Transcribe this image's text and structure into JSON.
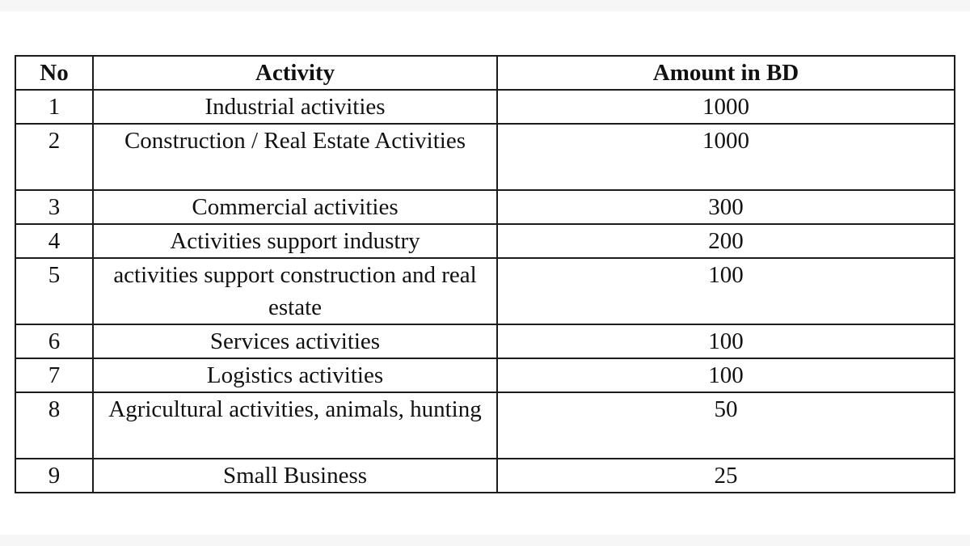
{
  "table": {
    "headers": {
      "no": "No",
      "activity": "Activity",
      "amount": "Amount in BD"
    },
    "rows": [
      {
        "no": "1",
        "activity": "Industrial activities",
        "amount": "1000"
      },
      {
        "no": "2",
        "activity": "Construction / Real Estate Activities",
        "amount": "1000"
      },
      {
        "no": "3",
        "activity": "Commercial activities",
        "amount": "300"
      },
      {
        "no": "4",
        "activity": "Activities support industry",
        "amount": "200"
      },
      {
        "no": "5",
        "activity": "activities support construction and real estate",
        "amount": "100"
      },
      {
        "no": "6",
        "activity": "Services activities",
        "amount": "100"
      },
      {
        "no": "7",
        "activity": "Logistics activities",
        "amount": "100"
      },
      {
        "no": "8",
        "activity": "Agricultural activities, animals, hunting",
        "amount": "50"
      },
      {
        "no": "9",
        "activity": "Small Business",
        "amount": "25"
      }
    ]
  },
  "colors": {
    "border": "#1b1b1b",
    "text": "#111111",
    "background": "#ffffff"
  }
}
